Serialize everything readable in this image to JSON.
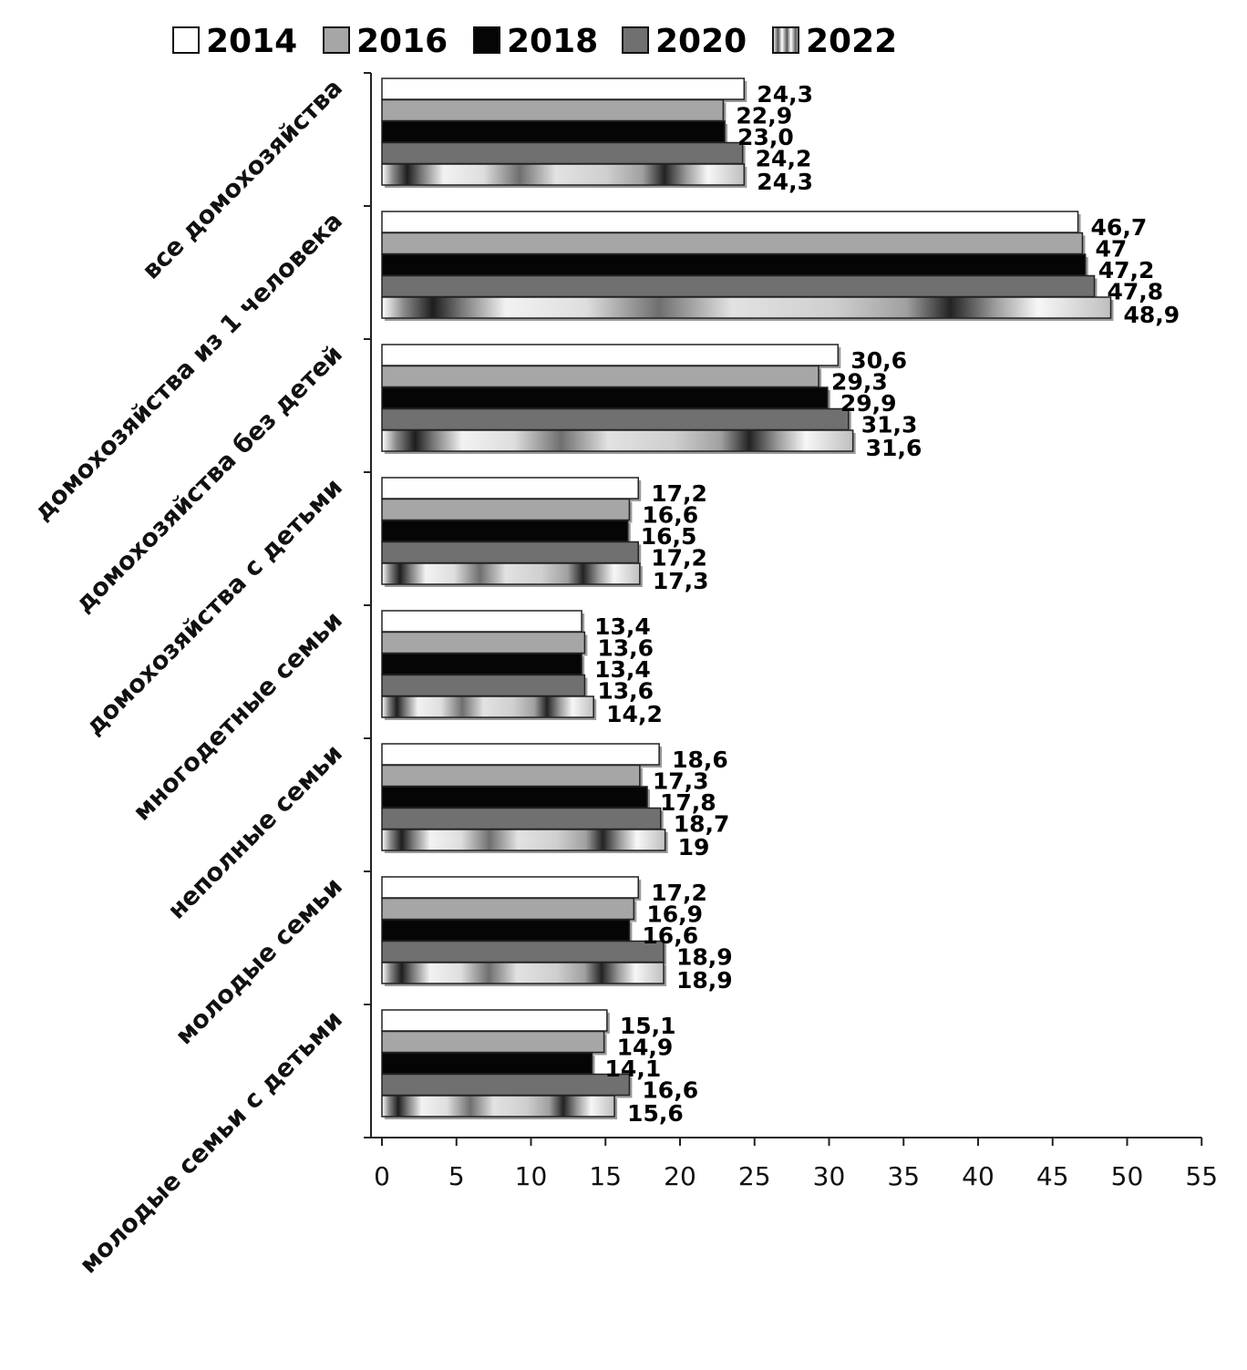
{
  "chart_data": {
    "type": "bar",
    "orientation": "horizontal",
    "categories": [
      "все домохозяйства",
      "домохозяйства из 1 человека",
      "домохозяйства без детей",
      "домохозяйства с детьми",
      "многодетные семьи",
      "неполные семьи",
      "молодые семьи",
      "молодые семьи  с детьми"
    ],
    "series": [
      {
        "name": "2014",
        "color": "#ffffff",
        "pattern": "solid",
        "values": [
          24.3,
          46.7,
          30.6,
          17.2,
          13.4,
          18.6,
          17.2,
          15.1
        ],
        "labels": [
          "24,3",
          "46,7",
          "30,6",
          "17,2",
          "13,4",
          "18,6",
          "17,2",
          "15,1"
        ]
      },
      {
        "name": "2016",
        "color": "#a6a6a6",
        "pattern": "solid",
        "values": [
          22.9,
          47,
          29.3,
          16.6,
          13.6,
          17.3,
          16.9,
          14.9
        ],
        "labels": [
          "22,9",
          "47",
          "29,3",
          "16,6",
          "13,6",
          "17,3",
          "16,9",
          "14,9"
        ]
      },
      {
        "name": "2018",
        "color": "#050505",
        "pattern": "solid",
        "values": [
          23.0,
          47.2,
          29.9,
          16.5,
          13.4,
          17.8,
          16.6,
          14.1
        ],
        "labels": [
          "23,0",
          "47,2",
          "29,9",
          "16,5",
          "13,4",
          "17,8",
          "16,6",
          "14,1"
        ]
      },
      {
        "name": "2020",
        "color": "#707070",
        "pattern": "solid",
        "values": [
          24.2,
          47.8,
          31.3,
          17.2,
          13.6,
          18.7,
          18.9,
          16.6
        ],
        "labels": [
          "24,2",
          "47,8",
          "31,3",
          "17,2",
          "13,6",
          "18,7",
          "18,9",
          "16,6"
        ]
      },
      {
        "name": "2022",
        "color": "#d9d9d9",
        "pattern": "banded",
        "values": [
          24.3,
          48.9,
          31.6,
          17.3,
          14.2,
          19,
          18.9,
          15.6
        ],
        "labels": [
          "24,3",
          "48,9",
          "31,6",
          "17,3",
          "14,2",
          "19",
          "18,9",
          "15,6"
        ]
      }
    ],
    "x_ticks": [
      0,
      5,
      10,
      15,
      20,
      25,
      30,
      35,
      40,
      45,
      50,
      55
    ],
    "xlim": [
      0,
      55
    ],
    "legend_position": "top",
    "grid": false
  }
}
